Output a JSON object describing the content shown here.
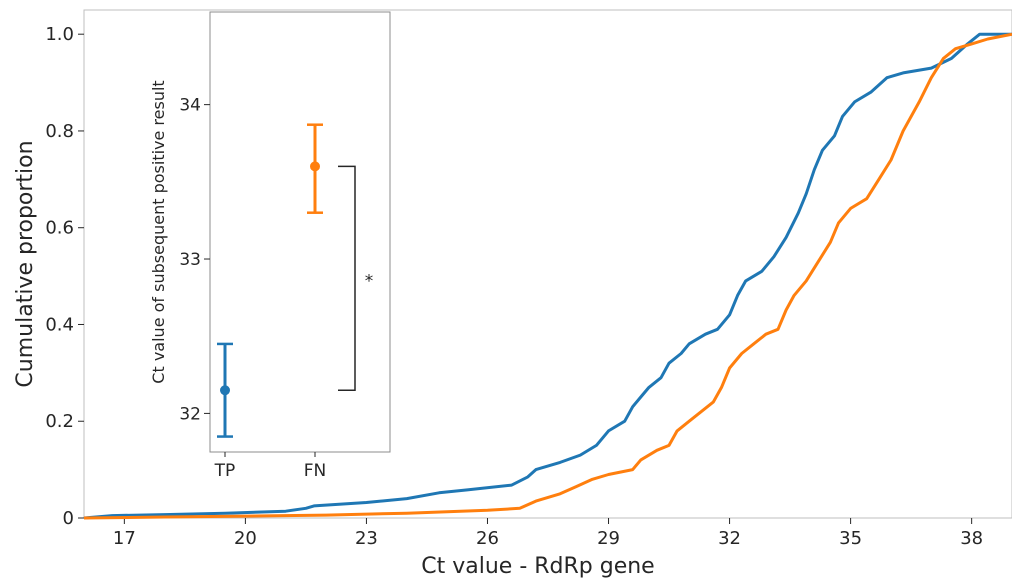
{
  "chart_data": [
    {
      "type": "line",
      "xlabel": "Ct value - RdRp gene",
      "ylabel": "Cumulative proportion",
      "xlim": [
        16.0,
        39.0
      ],
      "ylim": [
        0.0,
        1.05
      ],
      "x_ticks": [
        "17",
        "20",
        "23",
        "26",
        "29",
        "32",
        "35",
        "38"
      ],
      "y_ticks": [
        "0",
        "0.2",
        "0.4",
        "0.6",
        "0.8",
        "1.0"
      ],
      "grid": false,
      "series": [
        {
          "name": "",
          "color": "#1f77b4",
          "points": [
            [
              16.0,
              0.0
            ],
            [
              16.7,
              0.005
            ],
            [
              18.0,
              0.007
            ],
            [
              19.5,
              0.01
            ],
            [
              21.0,
              0.014
            ],
            [
              21.5,
              0.02
            ],
            [
              21.7,
              0.025
            ],
            [
              23.0,
              0.032
            ],
            [
              24.0,
              0.04
            ],
            [
              24.8,
              0.052
            ],
            [
              25.5,
              0.058
            ],
            [
              26.6,
              0.068
            ],
            [
              27.0,
              0.085
            ],
            [
              27.2,
              0.1
            ],
            [
              27.8,
              0.115
            ],
            [
              28.3,
              0.13
            ],
            [
              28.7,
              0.15
            ],
            [
              29.0,
              0.18
            ],
            [
              29.4,
              0.2
            ],
            [
              29.6,
              0.23
            ],
            [
              29.8,
              0.25
            ],
            [
              30.0,
              0.27
            ],
            [
              30.3,
              0.29
            ],
            [
              30.5,
              0.32
            ],
            [
              30.8,
              0.34
            ],
            [
              31.0,
              0.36
            ],
            [
              31.4,
              0.38
            ],
            [
              31.7,
              0.39
            ],
            [
              32.0,
              0.42
            ],
            [
              32.2,
              0.46
            ],
            [
              32.4,
              0.49
            ],
            [
              32.8,
              0.51
            ],
            [
              33.1,
              0.54
            ],
            [
              33.4,
              0.58
            ],
            [
              33.7,
              0.63
            ],
            [
              33.9,
              0.67
            ],
            [
              34.1,
              0.72
            ],
            [
              34.3,
              0.76
            ],
            [
              34.6,
              0.79
            ],
            [
              34.8,
              0.83
            ],
            [
              35.1,
              0.86
            ],
            [
              35.5,
              0.88
            ],
            [
              35.9,
              0.91
            ],
            [
              36.3,
              0.92
            ],
            [
              37.0,
              0.93
            ],
            [
              37.5,
              0.95
            ],
            [
              37.9,
              0.98
            ],
            [
              38.2,
              1.0
            ],
            [
              39.0,
              1.0
            ]
          ]
        },
        {
          "name": "",
          "color": "#ff7f0e",
          "points": [
            [
              16.0,
              0.0
            ],
            [
              18.0,
              0.002
            ],
            [
              20.0,
              0.004
            ],
            [
              22.0,
              0.006
            ],
            [
              24.0,
              0.01
            ],
            [
              26.0,
              0.016
            ],
            [
              26.8,
              0.02
            ],
            [
              27.2,
              0.035
            ],
            [
              27.8,
              0.05
            ],
            [
              28.2,
              0.065
            ],
            [
              28.6,
              0.08
            ],
            [
              29.0,
              0.09
            ],
            [
              29.6,
              0.1
            ],
            [
              29.8,
              0.12
            ],
            [
              30.2,
              0.14
            ],
            [
              30.5,
              0.15
            ],
            [
              30.7,
              0.18
            ],
            [
              31.0,
              0.2
            ],
            [
              31.3,
              0.22
            ],
            [
              31.6,
              0.24
            ],
            [
              31.8,
              0.27
            ],
            [
              32.0,
              0.31
            ],
            [
              32.3,
              0.34
            ],
            [
              32.6,
              0.36
            ],
            [
              32.9,
              0.38
            ],
            [
              33.2,
              0.39
            ],
            [
              33.4,
              0.43
            ],
            [
              33.6,
              0.46
            ],
            [
              33.9,
              0.49
            ],
            [
              34.2,
              0.53
            ],
            [
              34.5,
              0.57
            ],
            [
              34.7,
              0.61
            ],
            [
              35.0,
              0.64
            ],
            [
              35.4,
              0.66
            ],
            [
              35.7,
              0.7
            ],
            [
              36.0,
              0.74
            ],
            [
              36.3,
              0.8
            ],
            [
              36.7,
              0.86
            ],
            [
              37.0,
              0.91
            ],
            [
              37.3,
              0.95
            ],
            [
              37.6,
              0.97
            ],
            [
              38.0,
              0.98
            ],
            [
              38.4,
              0.99
            ],
            [
              39.0,
              1.0
            ]
          ]
        }
      ]
    },
    {
      "type": "scatter",
      "subtype": "errorbar",
      "ylabel": "Ct value of subsequent positive result",
      "categories": [
        "TP",
        "FN"
      ],
      "y_ticks": [
        "32",
        "33",
        "34"
      ],
      "ylim": [
        31.75,
        34.6
      ],
      "series": [
        {
          "name": "",
          "category": "TP",
          "color": "#1f77b4",
          "value": 32.15,
          "lower": 31.85,
          "upper": 32.45
        },
        {
          "name": "",
          "category": "FN",
          "color": "#ff7f0e",
          "value": 33.6,
          "lower": 33.3,
          "upper": 33.87
        }
      ],
      "annotation": {
        "text": "*",
        "between": [
          "TP",
          "FN"
        ]
      }
    }
  ]
}
